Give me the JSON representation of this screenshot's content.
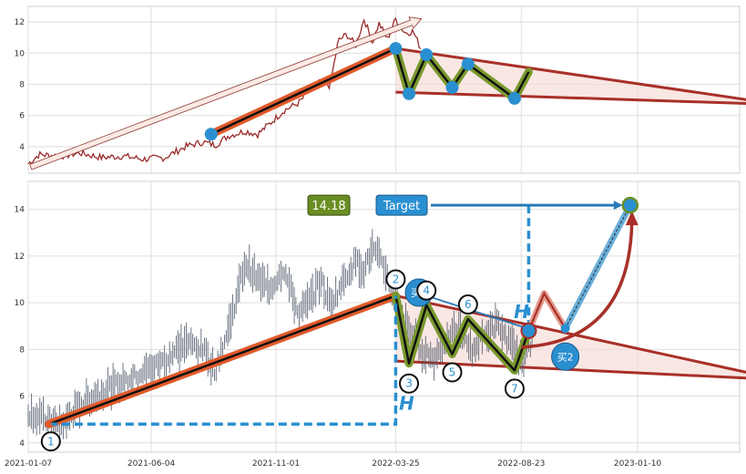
{
  "chart_data": [
    {
      "type": "line",
      "panel": "top",
      "title": "",
      "xlabel": "",
      "ylabel": "",
      "ylim": [
        2.3,
        13.0
      ],
      "y_ticks": [
        "4",
        "6",
        "8",
        "10",
        "12"
      ],
      "grid": true,
      "series": [
        {
          "color": "#9b2b2b",
          "x": [
            "2021-01-07",
            "2021-01-20",
            "2021-02-15",
            "2021-03-10",
            "2021-04-05",
            "2021-05-01",
            "2021-05-25",
            "2021-06-20",
            "2021-07-15",
            "2021-08-05",
            "2021-08-20",
            "2021-09-05",
            "2021-09-25",
            "2021-10-10",
            "2021-10-25",
            "2021-11-10",
            "2021-11-28",
            "2021-12-12",
            "2021-12-25",
            "2022-01-05",
            "2022-01-15",
            "2022-01-25",
            "2022-02-05",
            "2022-02-15",
            "2022-02-25",
            "2022-03-05",
            "2022-03-15",
            "2022-03-25",
            "2022-04-05",
            "2022-04-15",
            "2022-04-25"
          ],
          "y": [
            2.9,
            3.5,
            3.4,
            3.6,
            3.3,
            3.4,
            3.2,
            3.3,
            4.0,
            4.3,
            4.1,
            4.7,
            5.0,
            4.8,
            5.5,
            6.3,
            6.8,
            7.6,
            8.2,
            7.9,
            10.8,
            11.2,
            10.5,
            12.2,
            10.7,
            11.9,
            10.9,
            12.2,
            11.3,
            11.4,
            10.2
          ]
        }
      ],
      "annotations": {
        "trend_line": {
          "from": [
            "2021-08-15",
            4.8
          ],
          "to": [
            "2022-03-25",
            10.3
          ]
        },
        "arrow": {
          "from": [
            "2021-01-10",
            2.7
          ],
          "to": [
            "2022-04-25",
            12.2
          ]
        },
        "zigzag": [
          [
            "2022-03-25",
            10.3
          ],
          [
            "2022-04-10",
            7.4
          ],
          [
            "2022-05-01",
            9.9
          ],
          [
            "2022-06-01",
            7.8
          ],
          [
            "2022-06-20",
            9.3
          ],
          [
            "2022-08-15",
            7.1
          ],
          [
            "2022-09-01",
            8.8
          ]
        ],
        "triangle": {
          "upper_end": [
            "2023-07-01",
            6.7
          ],
          "lower_start": [
            "2022-03-25",
            7.5
          ]
        }
      }
    },
    {
      "type": "line",
      "panel": "bottom",
      "title": "",
      "xlabel": "",
      "ylabel": "",
      "ylim": [
        3.6,
        15.2
      ],
      "x_ticks": [
        "2021-01-07",
        "2021-06-04",
        "2021-11-01",
        "2022-03-25",
        "2022-08-23",
        "2023-01-10"
      ],
      "y_ticks": [
        "4",
        "6",
        "8",
        "10",
        "12",
        "14"
      ],
      "grid": true,
      "series": [
        {
          "color": "#4a5566",
          "x": [
            "2021-01-07",
            "2021-01-20",
            "2021-02-15",
            "2021-03-10",
            "2021-04-05",
            "2021-05-01",
            "2021-05-25",
            "2021-06-20",
            "2021-07-15",
            "2021-08-05",
            "2021-08-20",
            "2021-09-05",
            "2021-09-25",
            "2021-10-10",
            "2021-10-25",
            "2021-11-10",
            "2021-11-28",
            "2021-12-12",
            "2021-12-25",
            "2022-01-05",
            "2022-01-15",
            "2022-01-25",
            "2022-02-05",
            "2022-02-15",
            "2022-02-25",
            "2022-03-05",
            "2022-03-15",
            "2022-03-25",
            "2022-04-05",
            "2022-04-15",
            "2022-04-25",
            "2022-05-10",
            "2022-05-25",
            "2022-06-10",
            "2022-06-25",
            "2022-07-10",
            "2022-07-25",
            "2022-08-10",
            "2022-08-25",
            "2022-09-05"
          ],
          "y": [
            5.3,
            5.1,
            4.7,
            5.6,
            6.2,
            6.6,
            7.0,
            7.5,
            8.3,
            8.0,
            7.1,
            8.9,
            11.7,
            11.0,
            10.6,
            11.5,
            9.5,
            10.1,
            11.0,
            9.9,
            10.5,
            11.2,
            11.8,
            11.4,
            12.3,
            11.9,
            11.2,
            10.0,
            9.1,
            8.6,
            8.0,
            7.6,
            8.4,
            8.8,
            8.0,
            8.6,
            9.1,
            8.2,
            7.4,
            8.3
          ]
        }
      ],
      "annotations": {
        "buy1_label": "买1",
        "buy2_label": "买2",
        "target_label": "Target",
        "target_value": "14.18",
        "h_label": "H",
        "point_labels": [
          "1",
          "2",
          "3",
          "4",
          "5",
          "6",
          "7"
        ],
        "trend_line": {
          "from": [
            "2021-02-01",
            4.8
          ],
          "to": [
            "2022-03-25",
            10.3
          ]
        },
        "zigzag": [
          [
            "2022-03-25",
            10.3
          ],
          [
            "2022-04-10",
            7.4
          ],
          [
            "2022-05-01",
            9.9
          ],
          [
            "2022-06-01",
            7.8
          ],
          [
            "2022-06-20",
            9.3
          ],
          [
            "2022-08-15",
            7.1
          ],
          [
            "2022-09-01",
            8.8
          ]
        ],
        "triangle": {
          "upper_end": [
            "2023-07-01",
            6.7
          ],
          "lower_start": [
            "2022-03-25",
            7.5
          ]
        },
        "target": [
          "2023-01-01",
          14.18
        ],
        "buy1": [
          "2022-09-01",
          8.8
        ],
        "buy2": [
          "2022-10-15",
          8.9
        ]
      }
    }
  ]
}
